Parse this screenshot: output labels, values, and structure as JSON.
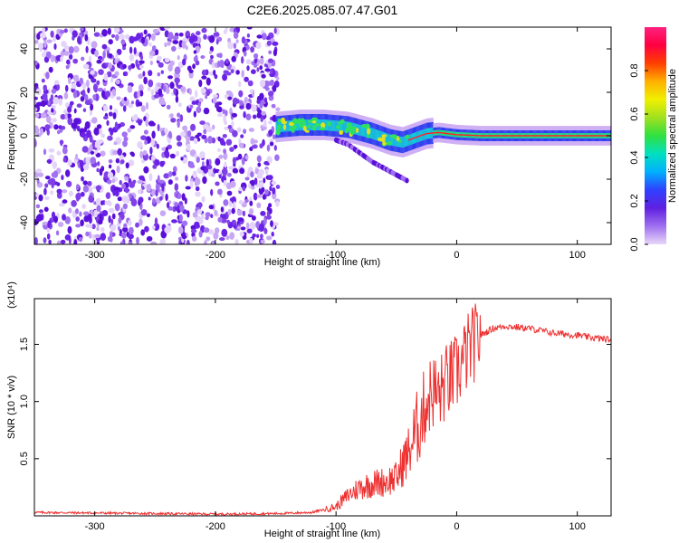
{
  "title": "C2E6.2025.085.07.47.G01",
  "chart_data": [
    {
      "type": "heatmap",
      "xlabel": "Height of straight line (km)",
      "ylabel": "Frequency (Hz)",
      "xlim": [
        -350,
        128
      ],
      "ylim": [
        -50,
        50
      ],
      "xticks": [
        "-300",
        "-200",
        "-100",
        "0",
        "100"
      ],
      "yticks": [
        "-40",
        "-20",
        "0",
        "20",
        "40"
      ],
      "grid": false,
      "colorbar": {
        "label": "Normalized spectral amplitude",
        "range": [
          0,
          1
        ],
        "ticks": [
          "0.0",
          "0.2",
          "0.4",
          "0.6",
          "0.8"
        ],
        "colors": [
          "#e8d8f8",
          "#a070f0",
          "#6020e0",
          "#3040ff",
          "#00b0ff",
          "#00e0c0",
          "#30e040",
          "#a0e020",
          "#f0f000",
          "#ffb000",
          "#ff4000",
          "#ff0040",
          "#ff2080"
        ]
      },
      "ridge": {
        "x": [
          -150,
          -130,
          -110,
          -90,
          -70,
          -55,
          -45,
          -35,
          -25,
          -15,
          0,
          20,
          40,
          60,
          80,
          100,
          128
        ],
        "y": [
          4,
          5,
          5,
          4,
          1,
          -2,
          -3,
          -1,
          1,
          1.5,
          0.5,
          0,
          0,
          0,
          0,
          0,
          0
        ]
      },
      "tail": {
        "x": [
          -100,
          -90,
          -80,
          -70,
          -60,
          -50,
          -40
        ],
        "y": [
          -2,
          -4,
          -8,
          -12,
          -15,
          -18,
          -21
        ]
      }
    },
    {
      "type": "line",
      "xlabel": "Height of straight line (km)",
      "ylabel": "SNR (10 * v/v)",
      "scale_label": "(x10⁴)",
      "xlim": [
        -350,
        128
      ],
      "ylim": [
        0,
        1.9
      ],
      "xticks": [
        "-300",
        "-200",
        "-100",
        "0",
        "100"
      ],
      "yticks": [
        "0.5",
        "1.0",
        "1.5"
      ],
      "grid": false,
      "series": [
        {
          "color": "#ee3030",
          "x": [
            -350,
            -300,
            -250,
            -200,
            -150,
            -120,
            -100,
            -90,
            -80,
            -70,
            -60,
            -50,
            -45,
            -40,
            -35,
            -30,
            -25,
            -20,
            -15,
            -10,
            -5,
            0,
            5,
            10,
            20,
            30,
            40,
            50,
            60,
            70,
            80,
            90,
            100,
            110,
            120,
            128
          ],
          "y": [
            0.03,
            0.025,
            0.02,
            0.015,
            0.02,
            0.03,
            0.08,
            0.18,
            0.25,
            0.28,
            0.3,
            0.33,
            0.45,
            0.55,
            0.7,
            0.85,
            1.0,
            1.1,
            1.05,
            1.15,
            1.2,
            1.25,
            1.35,
            1.45,
            1.58,
            1.64,
            1.66,
            1.65,
            1.64,
            1.62,
            1.6,
            1.59,
            1.58,
            1.56,
            1.55,
            1.54
          ]
        }
      ]
    }
  ]
}
